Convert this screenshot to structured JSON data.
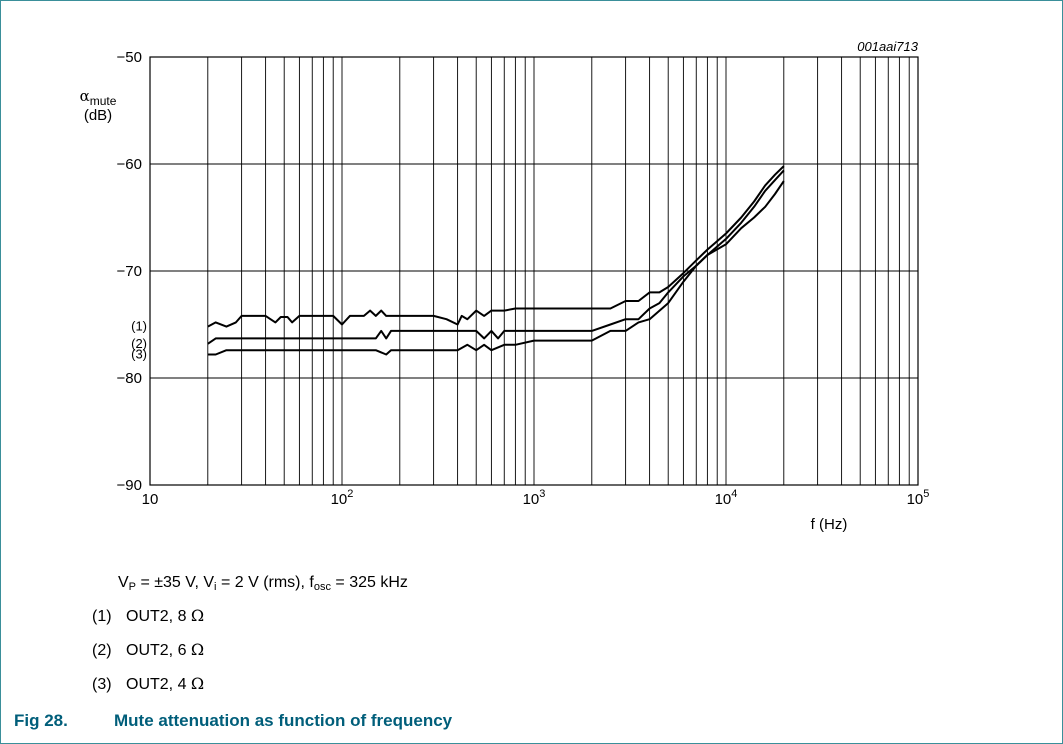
{
  "chart_data": {
    "type": "line",
    "code": "001aai713",
    "ylabel_symbol": "α",
    "ylabel_sub": "mute",
    "ylabel_unit": "(dB)",
    "xlabel": "f (Hz)",
    "x_scale": "log",
    "xlim": [
      10,
      100000
    ],
    "ylim": [
      -90,
      -50
    ],
    "grid": true,
    "y_ticks": [
      -50,
      -60,
      -70,
      -80,
      -90
    ],
    "y_tick_labels": [
      "−50",
      "−60",
      "−70",
      "−80",
      "−90"
    ],
    "x_ticks": [
      {
        "value": 10,
        "base": "10",
        "exp": ""
      },
      {
        "value": 100,
        "base": "10",
        "exp": "2"
      },
      {
        "value": 1000,
        "base": "10",
        "exp": "3"
      },
      {
        "value": 10000,
        "base": "10",
        "exp": "4"
      },
      {
        "value": 100000,
        "base": "10",
        "exp": "5"
      }
    ],
    "series": [
      {
        "name": "(1)",
        "x": [
          20,
          22,
          25,
          28,
          30,
          35,
          40,
          45,
          48,
          52,
          55,
          60,
          65,
          70,
          75,
          80,
          90,
          100,
          110,
          130,
          140,
          150,
          160,
          170,
          180,
          200,
          250,
          300,
          350,
          400,
          420,
          450,
          500,
          550,
          600,
          700,
          800,
          1000,
          1500,
          2000,
          2500,
          3000,
          3500,
          4000,
          4500,
          5000,
          6000,
          7000,
          8000,
          10000,
          12000,
          14000,
          16000,
          18000,
          20000
        ],
        "y": [
          -75.2,
          -74.8,
          -75.2,
          -74.8,
          -74.2,
          -74.2,
          -74.2,
          -74.8,
          -74.3,
          -74.3,
          -74.8,
          -74.2,
          -74.2,
          -74.2,
          -74.2,
          -74.2,
          -74.2,
          -75.0,
          -74.2,
          -74.2,
          -73.7,
          -74.2,
          -73.7,
          -74.2,
          -74.2,
          -74.2,
          -74.2,
          -74.2,
          -74.5,
          -75.0,
          -74.2,
          -74.5,
          -73.7,
          -74.2,
          -73.7,
          -73.7,
          -73.5,
          -73.5,
          -73.5,
          -73.5,
          -73.5,
          -72.8,
          -72.8,
          -72.0,
          -72.0,
          -71.5,
          -70.2,
          -69.0,
          -68.0,
          -66.5,
          -65.0,
          -63.5,
          -62.0,
          -61.0,
          -60.2
        ]
      },
      {
        "name": "(2)",
        "x": [
          20,
          22,
          25,
          30,
          40,
          50,
          60,
          80,
          100,
          150,
          160,
          170,
          180,
          200,
          250,
          300,
          400,
          450,
          500,
          550,
          600,
          650,
          700,
          800,
          1000,
          1500,
          2000,
          2500,
          3000,
          3500,
          4000,
          4500,
          5000,
          6000,
          7000,
          8000,
          10000,
          12000,
          14000,
          16000,
          18000,
          20000
        ],
        "y": [
          -76.8,
          -76.3,
          -76.3,
          -76.3,
          -76.3,
          -76.3,
          -76.3,
          -76.3,
          -76.3,
          -76.3,
          -75.6,
          -76.3,
          -75.6,
          -75.6,
          -75.6,
          -75.6,
          -75.6,
          -75.6,
          -75.6,
          -76.3,
          -75.6,
          -76.3,
          -75.6,
          -75.6,
          -75.6,
          -75.6,
          -75.6,
          -75.0,
          -74.5,
          -74.5,
          -73.5,
          -73.0,
          -72.0,
          -70.5,
          -69.5,
          -68.5,
          -67.0,
          -65.5,
          -64.0,
          -62.5,
          -61.5,
          -60.6
        ]
      },
      {
        "name": "(3)",
        "x": [
          20,
          22,
          25,
          30,
          40,
          60,
          80,
          100,
          150,
          170,
          180,
          200,
          250,
          300,
          400,
          450,
          500,
          550,
          600,
          700,
          800,
          1000,
          1500,
          2000,
          2500,
          3000,
          3500,
          4000,
          5000,
          6000,
          7000,
          8000,
          10000,
          12000,
          14000,
          16000,
          18000,
          20000
        ],
        "y": [
          -77.8,
          -77.8,
          -77.4,
          -77.4,
          -77.4,
          -77.4,
          -77.4,
          -77.4,
          -77.4,
          -77.8,
          -77.4,
          -77.4,
          -77.4,
          -77.4,
          -77.4,
          -76.9,
          -77.4,
          -76.9,
          -77.4,
          -76.9,
          -76.9,
          -76.5,
          -76.5,
          -76.5,
          -75.6,
          -75.6,
          -74.8,
          -74.5,
          -73.0,
          -71.0,
          -69.5,
          -68.5,
          -67.5,
          -66.0,
          -65.0,
          -64.0,
          -62.8,
          -61.6
        ]
      }
    ]
  },
  "conditions": {
    "vp_main": "V",
    "vp_sub": "P",
    "vp_text": " = ±35 V, ",
    "vi_main": "V",
    "vi_sub": "i",
    "vi_text": " = 2 V (rms), ",
    "fosc_main": "f",
    "fosc_sub": "osc",
    "fosc_text": " = 325 kHz"
  },
  "notes": [
    {
      "num": "(1)",
      "text": "OUT2, 8 ",
      "unit": "Ω"
    },
    {
      "num": "(2)",
      "text": "OUT2, 6 ",
      "unit": "Ω"
    },
    {
      "num": "(3)",
      "text": "OUT2, 4 ",
      "unit": "Ω"
    }
  ],
  "caption": {
    "fig": "Fig 28.",
    "title": "Mute attenuation as function of frequency"
  },
  "colors": {
    "frame": "#3a8f9a",
    "caption": "#005e7a",
    "line": "#000000"
  }
}
